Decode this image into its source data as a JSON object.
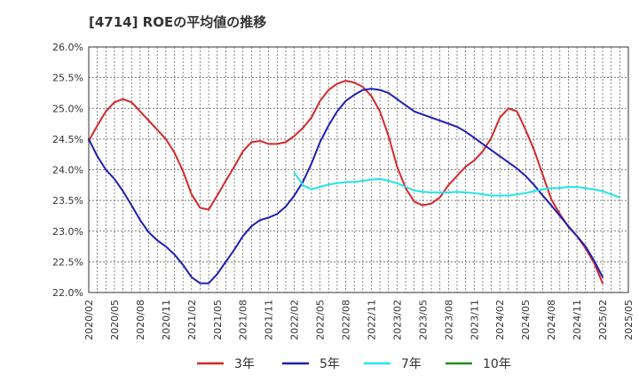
{
  "chart_data": {
    "type": "line",
    "title": "[4714]  ROEの平均値の推移",
    "ylim": [
      22.0,
      26.0
    ],
    "yticks": [
      "22.0%",
      "22.5%",
      "23.0%",
      "23.5%",
      "24.0%",
      "24.5%",
      "25.0%",
      "25.5%",
      "26.0%"
    ],
    "ytick_values": [
      22.0,
      22.5,
      23.0,
      23.5,
      24.0,
      24.5,
      25.0,
      25.5,
      26.0
    ],
    "xticks": [
      "2020/02",
      "2020/05",
      "2020/08",
      "2020/11",
      "2021/02",
      "2021/05",
      "2021/08",
      "2021/11",
      "2022/02",
      "2022/05",
      "2022/08",
      "2022/11",
      "2023/02",
      "2023/05",
      "2023/08",
      "2023/11",
      "2024/02",
      "2024/05",
      "2024/08",
      "2024/11",
      "2025/02",
      "2025/05"
    ],
    "x_start": "2020/02",
    "x_end": "2025/05",
    "grid": true,
    "legend_position": "bottom",
    "series": [
      {
        "name": "3年",
        "color": "#d62728",
        "start": "2020/02",
        "values": [
          24.47,
          24.72,
          24.95,
          25.1,
          25.15,
          25.1,
          24.95,
          24.8,
          24.65,
          24.5,
          24.28,
          23.98,
          23.6,
          23.38,
          23.35,
          23.58,
          23.82,
          24.05,
          24.3,
          24.45,
          24.47,
          24.42,
          24.42,
          24.45,
          24.55,
          24.68,
          24.85,
          25.12,
          25.3,
          25.4,
          25.45,
          25.42,
          25.35,
          25.2,
          24.95,
          24.55,
          24.05,
          23.7,
          23.48,
          23.42,
          23.45,
          23.55,
          23.75,
          23.9,
          24.05,
          24.15,
          24.3,
          24.52,
          24.85,
          25.0,
          24.95,
          24.65,
          24.32,
          23.92,
          23.52,
          23.28,
          23.07,
          22.92,
          22.72,
          22.48,
          22.15
        ]
      },
      {
        "name": "5年",
        "color": "#1f1fb4",
        "start": "2020/02",
        "values": [
          24.5,
          24.22,
          24.0,
          23.85,
          23.65,
          23.42,
          23.18,
          22.98,
          22.85,
          22.75,
          22.62,
          22.45,
          22.25,
          22.15,
          22.15,
          22.3,
          22.5,
          22.7,
          22.92,
          23.08,
          23.18,
          23.22,
          23.28,
          23.4,
          23.58,
          23.8,
          24.1,
          24.45,
          24.72,
          24.95,
          25.12,
          25.22,
          25.3,
          25.32,
          25.3,
          25.25,
          25.15,
          25.05,
          24.95,
          24.9,
          24.85,
          24.8,
          24.75,
          24.7,
          24.62,
          24.52,
          24.42,
          24.32,
          24.22,
          24.12,
          24.02,
          23.9,
          23.75,
          23.58,
          23.42,
          23.25,
          23.08,
          22.92,
          22.75,
          22.52,
          22.25
        ]
      },
      {
        "name": "7年",
        "color": "#22e5e5",
        "start": "2022/02",
        "values": [
          23.95,
          23.75,
          23.68,
          23.72,
          23.76,
          23.78,
          23.8,
          23.8,
          23.82,
          23.84,
          23.85,
          23.82,
          23.78,
          23.72,
          23.66,
          23.64,
          23.63,
          23.63,
          23.63,
          23.64,
          23.63,
          23.62,
          23.6,
          23.58,
          23.58,
          23.58,
          23.6,
          23.62,
          23.65,
          23.68,
          23.7,
          23.7,
          23.72,
          23.72,
          23.7,
          23.68,
          23.65,
          23.6,
          23.55
        ]
      },
      {
        "name": "10年",
        "color": "#228b22",
        "start": "2025/02",
        "values": []
      }
    ]
  }
}
